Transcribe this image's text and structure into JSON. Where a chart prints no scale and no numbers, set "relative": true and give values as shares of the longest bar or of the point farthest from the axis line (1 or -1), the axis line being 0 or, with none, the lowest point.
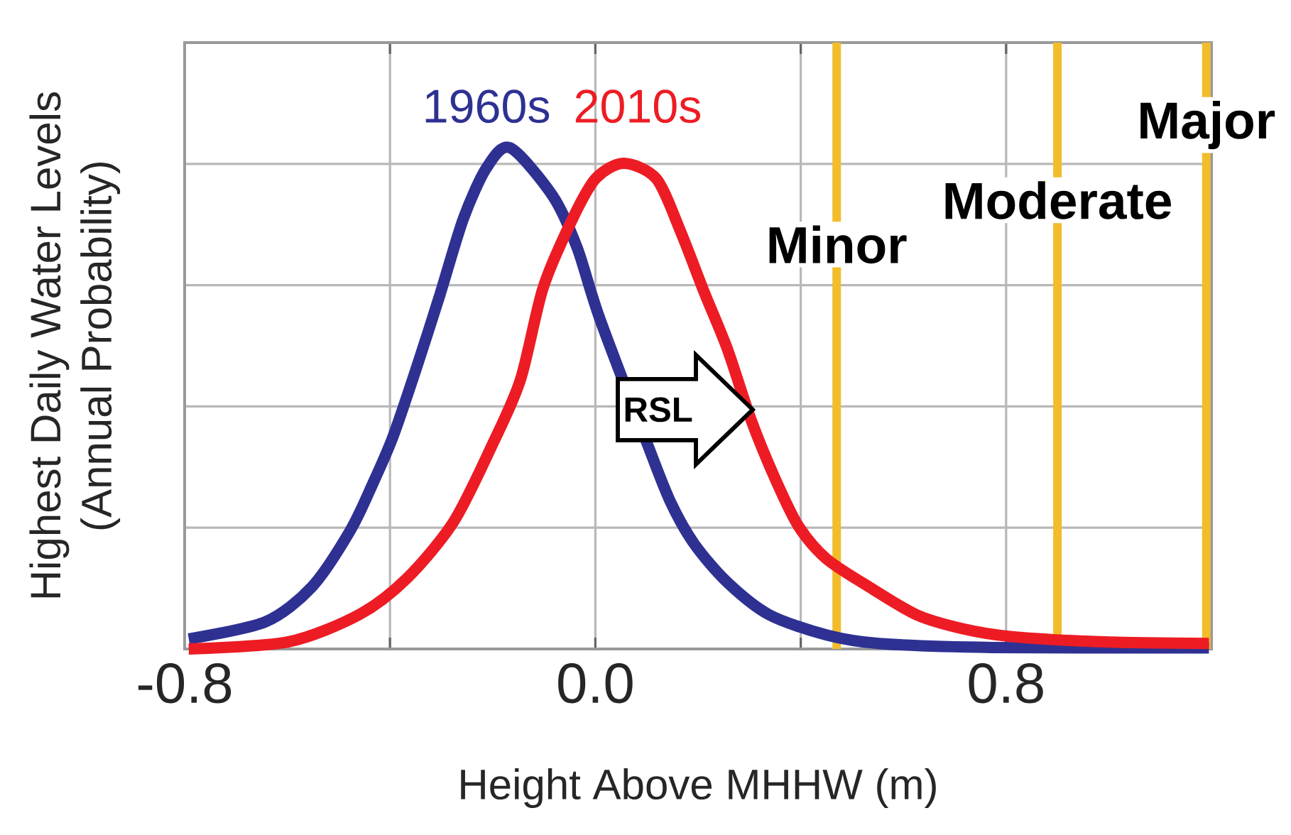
{
  "chart_data": {
    "type": "line",
    "relative": true,
    "xlabel": "Height Above MHHW (m)",
    "ylabel": "Highest Daily Water Levels (Annual Probability)",
    "xlim": [
      -0.8,
      1.2
    ],
    "xticks": [
      -0.8,
      {
        "value": -0.4,
        "label": null
      },
      {
        "value": 0.0,
        "label": "0.0"
      },
      {
        "value": 0.4,
        "label": null
      },
      0.8,
      {
        "value": 1.2,
        "label": null
      }
    ],
    "tick_labels": "x",
    "grid": true,
    "line_style": "solid",
    "marker": "none",
    "series": [
      {
        "name": "1960s",
        "color": "#2e3192",
        "x": [
          -0.792,
          -0.643,
          -0.552,
          -0.477,
          -0.433,
          -0.394,
          -0.35,
          -0.303,
          -0.257,
          -0.212,
          -0.166,
          -0.083,
          -0.036,
          0.008,
          0.055,
          0.102,
          0.146,
          0.193,
          0.257,
          0.339,
          0.45,
          0.552,
          0.773,
          1.195
        ],
        "values": [
          0.02,
          0.054,
          0.124,
          0.237,
          0.331,
          0.424,
          0.556,
          0.706,
          0.859,
          0.96,
          1.0,
          0.904,
          0.802,
          0.661,
          null,
          0.407,
          0.294,
          0.209,
          0.133,
          0.068,
          0.028,
          0.011,
          0.003,
          0.002
        ]
      },
      {
        "name": "2010s",
        "color": "#ed1c24",
        "x": [
          -0.792,
          -0.599,
          -0.461,
          -0.367,
          -0.276,
          -0.201,
          -0.146,
          -0.102,
          -0.047,
          0.0,
          0.055,
          0.119,
          0.166,
          0.212,
          0.257,
          0.303,
          0.35,
          0.395,
          0.45,
          0.533,
          0.626,
          0.717,
          0.808,
          0.993,
          1.195
        ],
        "values": [
          0.0,
          0.014,
          0.068,
          0.141,
          0.254,
          0.407,
          0.537,
          0.72,
          0.853,
          0.938,
          0.969,
          0.938,
          0.833,
          0.712,
          0.599,
          0.458,
          0.34,
          0.246,
          0.18,
          0.124,
          0.068,
          0.04,
          0.025,
          0.014,
          0.011
        ]
      }
    ],
    "ref_lines": [
      {
        "axis": "x",
        "value": 0.47,
        "label": "Minor",
        "color": "#f2bc2a"
      },
      {
        "axis": "x",
        "value": 0.9,
        "label": "Moderate",
        "color": "#f2bc2a"
      },
      {
        "axis": "x",
        "value": 1.19,
        "label": "Major",
        "color": "#f2bc2a"
      }
    ],
    "annotations": [
      "RSL"
    ]
  }
}
